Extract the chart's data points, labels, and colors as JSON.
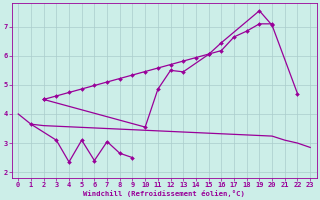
{
  "bg_color": "#cceee8",
  "grid_color": "#aacccc",
  "line_color": "#990099",
  "xlabel": "Windchill (Refroidissement éolien,°C)",
  "xlim": [
    -0.5,
    23.5
  ],
  "ylim": [
    1.8,
    7.8
  ],
  "yticks": [
    2,
    3,
    4,
    5,
    6,
    7
  ],
  "xticks": [
    0,
    1,
    2,
    3,
    4,
    5,
    6,
    7,
    8,
    9,
    10,
    11,
    12,
    13,
    14,
    15,
    16,
    17,
    18,
    19,
    20,
    21,
    22,
    23
  ],
  "flat_x": [
    0,
    1,
    2,
    3,
    4,
    5,
    6,
    7,
    8,
    9,
    10,
    11,
    12,
    13,
    14,
    15,
    16,
    17,
    18,
    19,
    20,
    21,
    22,
    23
  ],
  "flat_y": [
    4.0,
    3.65,
    3.6,
    3.58,
    3.56,
    3.54,
    3.52,
    3.5,
    3.48,
    3.46,
    3.44,
    3.42,
    3.4,
    3.38,
    3.36,
    3.34,
    3.32,
    3.3,
    3.28,
    3.26,
    3.24,
    3.1,
    3.0,
    2.85
  ],
  "zigzag_x": [
    1,
    3,
    4,
    5,
    6,
    7,
    8,
    9
  ],
  "zigzag_y": [
    3.65,
    3.1,
    2.35,
    3.1,
    2.4,
    3.05,
    2.65,
    2.5
  ],
  "curve_x": [
    2,
    10,
    11,
    12,
    13,
    15,
    16,
    19,
    20,
    22
  ],
  "curve_y": [
    4.5,
    3.55,
    4.85,
    5.5,
    5.45,
    6.05,
    6.45,
    7.55,
    7.05,
    4.7
  ],
  "straight_x": [
    2,
    3,
    4,
    5,
    6,
    7,
    8,
    9,
    10,
    11,
    12,
    13,
    14,
    15,
    16,
    17,
    18,
    19,
    20
  ],
  "straight_y": [
    4.5,
    4.62,
    4.74,
    4.86,
    4.98,
    5.1,
    5.22,
    5.34,
    5.46,
    5.58,
    5.7,
    5.82,
    5.94,
    6.06,
    6.18,
    6.65,
    6.85,
    7.1,
    7.1
  ]
}
